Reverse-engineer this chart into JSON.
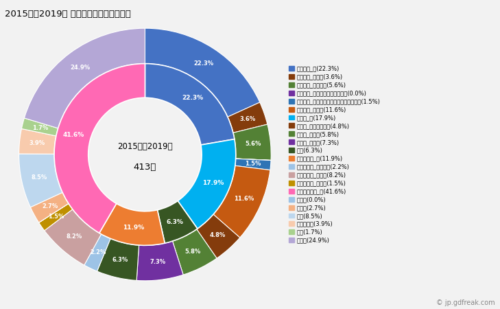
{
  "title": "2015年～2019年 最上町の女性の死因構成",
  "center_text_line1": "2015年～2019年",
  "center_text_line2": "413人",
  "outer_values": [
    22.3,
    3.6,
    5.6,
    0.01,
    1.5,
    11.6,
    4.8,
    5.8,
    7.3,
    6.3,
    2.2,
    8.2,
    1.5,
    0.01,
    2.7,
    8.5,
    3.9,
    1.7,
    24.9
  ],
  "outer_colors": [
    "#4472C4",
    "#843C0C",
    "#538135",
    "#7030A0",
    "#2E74B5",
    "#C55A11",
    "#843C0C",
    "#538135",
    "#7030A0",
    "#375623",
    "#9DC3E6",
    "#C9A0A0",
    "#BF9000",
    "#9DC3E6",
    "#F4B183",
    "#BDD7EE",
    "#F8CBAD",
    "#A9D18E",
    "#B4A7D6"
  ],
  "inner_values": [
    22.3,
    17.9,
    6.3,
    11.9,
    41.6
  ],
  "inner_colors": [
    "#4472C4",
    "#00B0F0",
    "#375623",
    "#ED7D31",
    "#FF69B4"
  ],
  "outer_labels_display": [
    22.3,
    3.6,
    5.6,
    0.0,
    1.5,
    11.6,
    4.8,
    5.8,
    7.3,
    6.3,
    2.2,
    8.2,
    1.5,
    0.0,
    2.7,
    8.5,
    3.9,
    1.7,
    24.9
  ],
  "legend_items": [
    {
      "label": "悪性腫瘍_計(22.3%)",
      "color": "#4472C4"
    },
    {
      "label": "悪性腫瘍_胃がん(3.6%)",
      "color": "#843C0C"
    },
    {
      "label": "悪性腫瘍_大腸がん(5.6%)",
      "color": "#538135"
    },
    {
      "label": "悪性腫瘍_肝がん・肝内胆管がん(0.0%)",
      "color": "#7030A0"
    },
    {
      "label": "悪性腫瘍_気管がん・気管支がん・肺がん(1.5%)",
      "color": "#2E74B5"
    },
    {
      "label": "悪性腫瘍_その他(11.6%)",
      "color": "#C55A11"
    },
    {
      "label": "心疾患_計(17.9%)",
      "color": "#00B0F0"
    },
    {
      "label": "心疾患_急性心筋梗塞(4.8%)",
      "color": "#843C0C"
    },
    {
      "label": "心疾患_心不全(5.8%)",
      "color": "#538135"
    },
    {
      "label": "心疾患_その他(7.3%)",
      "color": "#7030A0"
    },
    {
      "label": "肺炎(6.3%)",
      "color": "#375623"
    },
    {
      "label": "脳血管疾患_計(11.9%)",
      "color": "#ED7D31"
    },
    {
      "label": "脳血管疾患_脳内出血(2.2%)",
      "color": "#9DC3E6"
    },
    {
      "label": "脳血管疾患_脳梗塞(8.2%)",
      "color": "#C9A0A0"
    },
    {
      "label": "脳血管疾患_その他(1.5%)",
      "color": "#BF9000"
    },
    {
      "label": "その他の死因_計(41.6%)",
      "color": "#FF69B4"
    },
    {
      "label": "肝疾患(0.0%)",
      "color": "#9DC3E6"
    },
    {
      "label": "腎不全(2.7%)",
      "color": "#F4B183"
    },
    {
      "label": "老衰(8.5%)",
      "color": "#BDD7EE"
    },
    {
      "label": "不慮の事故(3.9%)",
      "color": "#F8CBAD"
    },
    {
      "label": "自殺(1.7%)",
      "color": "#A9D18E"
    },
    {
      "label": "その他(24.9%)",
      "color": "#B4A7D6"
    }
  ],
  "background_color": "#F2F2F2",
  "watermark": "© jp.gdfreak.com"
}
